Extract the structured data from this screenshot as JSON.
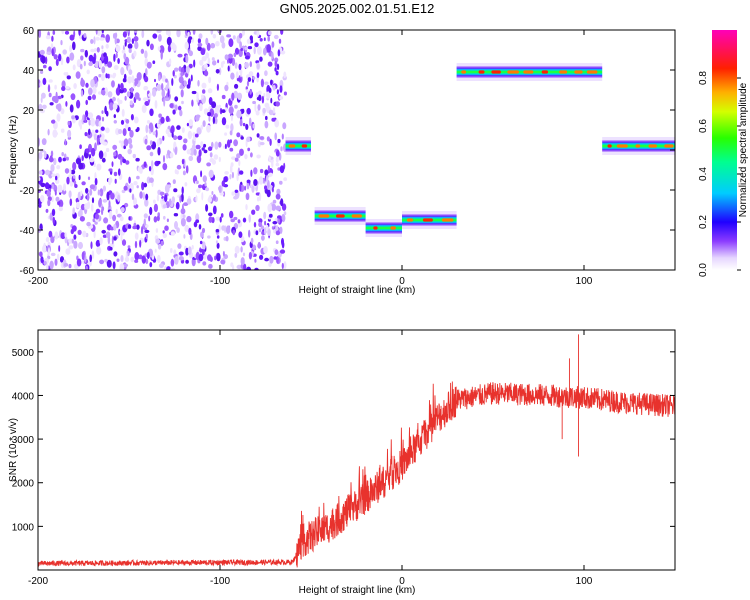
{
  "title": "GN05.2025.002.01.51.E12",
  "chart_data": [
    {
      "type": "heatmap",
      "title": "GN05.2025.002.01.51.E12",
      "xlabel": "Height of straight line (km)",
      "ylabel": "Frequency (Hz)",
      "xlim": [
        -200,
        150
      ],
      "ylim": [
        -60,
        60
      ],
      "xticks": [
        -200,
        -100,
        0,
        100
      ],
      "yticks": [
        -60,
        -40,
        -20,
        0,
        20,
        40,
        60
      ],
      "noise_region_x": [
        -200,
        -64
      ],
      "tracks": [
        {
          "x": [
            -64,
            -50
          ],
          "freq": 2
        },
        {
          "x": [
            -48,
            -20
          ],
          "freq": -33
        },
        {
          "x": [
            -20,
            0
          ],
          "freq": -39
        },
        {
          "x": [
            0,
            30
          ],
          "freq": -35
        },
        {
          "x": [
            30,
            110
          ],
          "freq": 39
        },
        {
          "x": [
            110,
            150
          ],
          "freq": 2
        }
      ],
      "colorbar": {
        "label": "Normalized spectral amplitude",
        "ticks": [
          "0.0",
          "0.2",
          "0.4",
          "0.6",
          "0.8"
        ],
        "range": [
          0,
          1
        ]
      }
    },
    {
      "type": "line",
      "xlabel": "Height of straight line (km)",
      "ylabel": "SNR (10 * v/v)",
      "xlim": [
        -200,
        150
      ],
      "ylim": [
        0,
        5500
      ],
      "xticks": [
        -200,
        -100,
        0,
        100
      ],
      "yticks": [
        1000,
        2000,
        3000,
        4000,
        5000
      ],
      "color": "#e8322d",
      "trend": {
        "x": [
          -200,
          -60,
          -55,
          -40,
          -20,
          0,
          20,
          30,
          50,
          80,
          100,
          120,
          150
        ],
        "y": [
          150,
          180,
          650,
          1000,
          1650,
          2400,
          3500,
          3900,
          4050,
          4000,
          3950,
          3850,
          3750
        ]
      },
      "spikes": [
        {
          "x": 97,
          "y": 5400
        },
        {
          "x": 97,
          "y": 2600
        },
        {
          "x": 92,
          "y": 4850
        },
        {
          "x": 88,
          "y": 3000
        }
      ]
    }
  ]
}
